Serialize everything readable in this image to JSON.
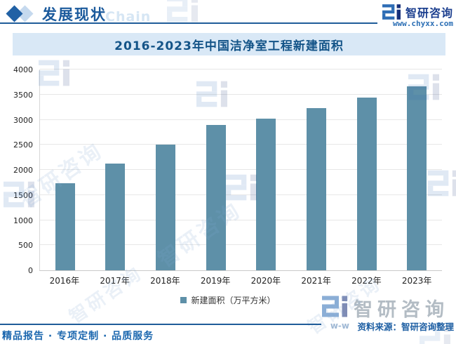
{
  "header": {
    "section_title": "发展现状",
    "section_watermark": "Chain",
    "brand_name": "智研咨询",
    "website": "www.chyxx.com"
  },
  "icons": {
    "section_marker": "double-diamond",
    "brand_logo": "zhiyan-zi-mark",
    "legend_marker": "square"
  },
  "chart_data": {
    "type": "bar",
    "title": "2016-2023年中国洁净室工程新建面积",
    "categories": [
      "2016年",
      "2017年",
      "2018年",
      "2019年",
      "2020年",
      "2021年",
      "2022年",
      "2023年"
    ],
    "values": [
      1740,
      2120,
      2510,
      2890,
      3020,
      3230,
      3440,
      3670
    ],
    "series_name": "新建面积（万平方米）",
    "unit": "万平方米",
    "ylim": [
      0,
      4000
    ],
    "ytick_interval": 500,
    "yticks": [
      0,
      500,
      1000,
      1500,
      2000,
      2500,
      3000,
      3500,
      4000
    ],
    "grid": true,
    "legend_position": "bottom",
    "bar_color": "#5e90a8"
  },
  "source": {
    "text": "资料来源：智研咨询整理"
  },
  "footer": {
    "slogan": "精品报告 · 专项定制 · 品质服务"
  },
  "watermark": {
    "brand": "智研咨询",
    "fragment": "w-w"
  },
  "colors": {
    "accent_blue": "#1b5a9c",
    "logo_light_blue": "#2e6db5",
    "logo_dark_navy": "#17307a",
    "title_band_bg": "#d9e8f6",
    "title_band_text": "#145488",
    "bar": "#5e90a8",
    "gridline": "#e7e7e7",
    "source_text": "#1e5fa3",
    "footer_text": "#1a66ae"
  }
}
